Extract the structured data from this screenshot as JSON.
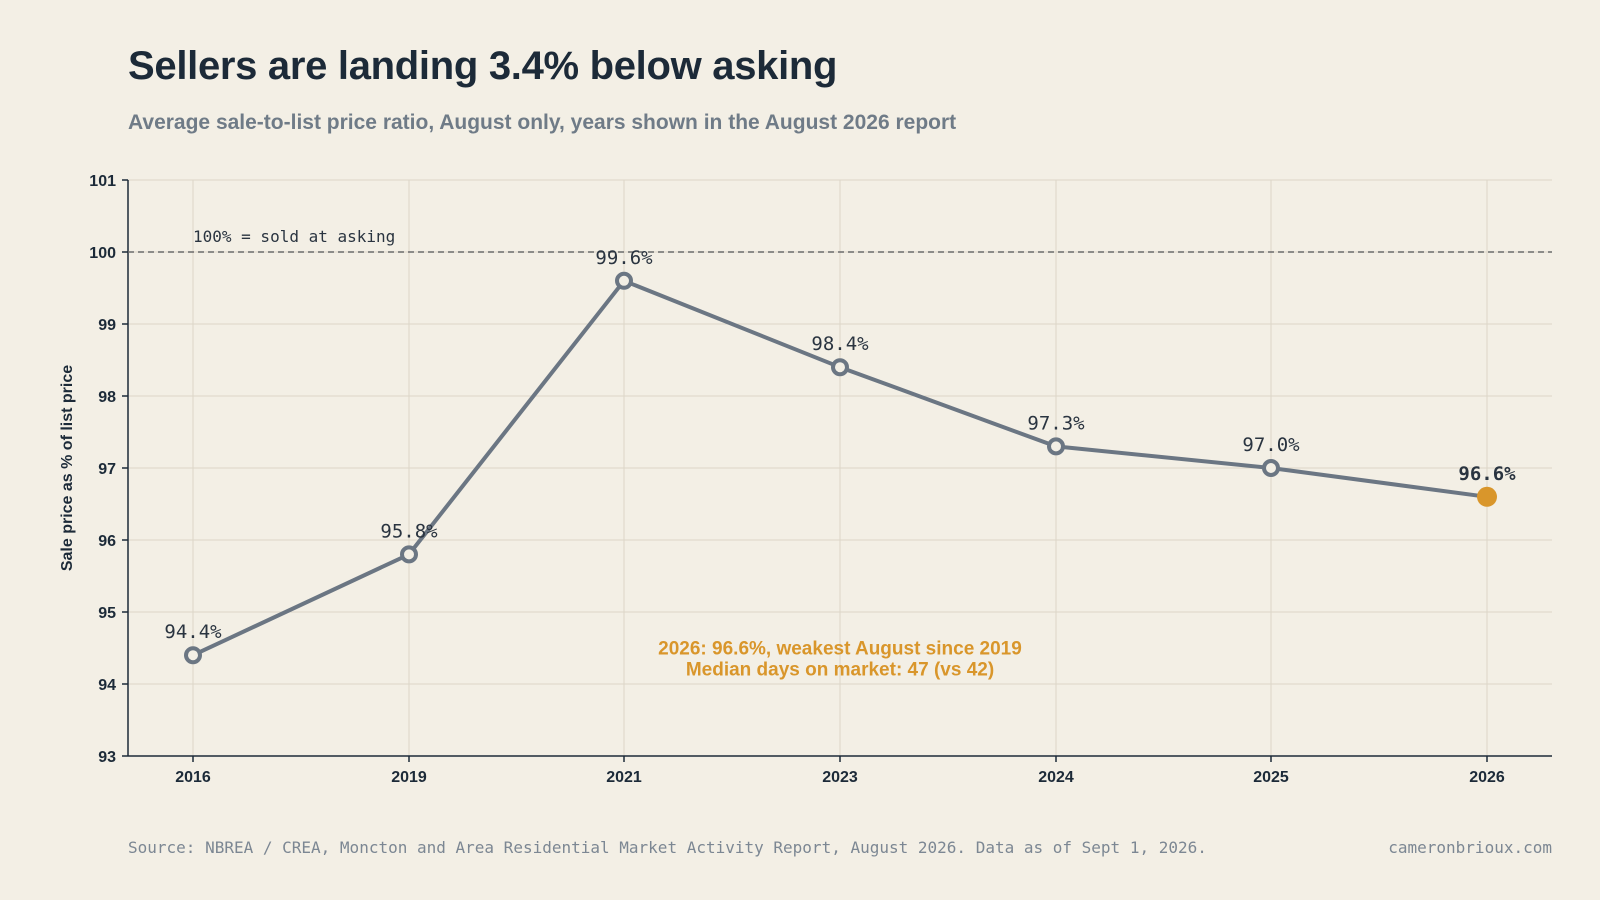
{
  "header": {
    "title": "Sellers are landing 3.4% below asking",
    "subtitle": "Average sale-to-list price ratio, August only, years shown in the August 2026 report"
  },
  "footer": {
    "source": "Source: NBREA / CREA, Moncton and Area Residential Market Activity Report, August 2026. Data as of Sept 1, 2026.",
    "site": "cameronbrioux.com"
  },
  "chart_data": {
    "type": "line",
    "title": "Sellers are landing 3.4% below asking",
    "subtitle": "Average sale-to-list price ratio, August only, years shown in the August 2026 report",
    "xlabel": "",
    "ylabel": "Sale price as % of list price",
    "categories": [
      "2016",
      "2019",
      "2021",
      "2023",
      "2024",
      "2025",
      "2026"
    ],
    "values": [
      94.4,
      95.8,
      99.6,
      98.4,
      97.3,
      97.0,
      96.6
    ],
    "data_labels": [
      "94.4%",
      "95.8%",
      "99.6%",
      "98.4%",
      "97.3%",
      "97.0%",
      "96.6%"
    ],
    "highlight_index": 6,
    "ylim": [
      93,
      101
    ],
    "yticks": [
      "93",
      "94",
      "95",
      "96",
      "97",
      "98",
      "99",
      "100",
      "101"
    ],
    "grid": true,
    "reference_line": {
      "value": 100,
      "label": "100% = sold at asking"
    },
    "annotation": {
      "lines": [
        "2026: 96.6%, weakest August since 2019",
        "Median days on market: 47 (vs 42)"
      ],
      "anchor_category": "2023",
      "anchor_value": 94.3
    },
    "colors": {
      "line": "#6b7683",
      "highlight": "#d9962b",
      "grid": "#dcd6c8",
      "axis": "#1c2a38",
      "reference": "#6b6b6b",
      "label": "#2a3440"
    }
  }
}
